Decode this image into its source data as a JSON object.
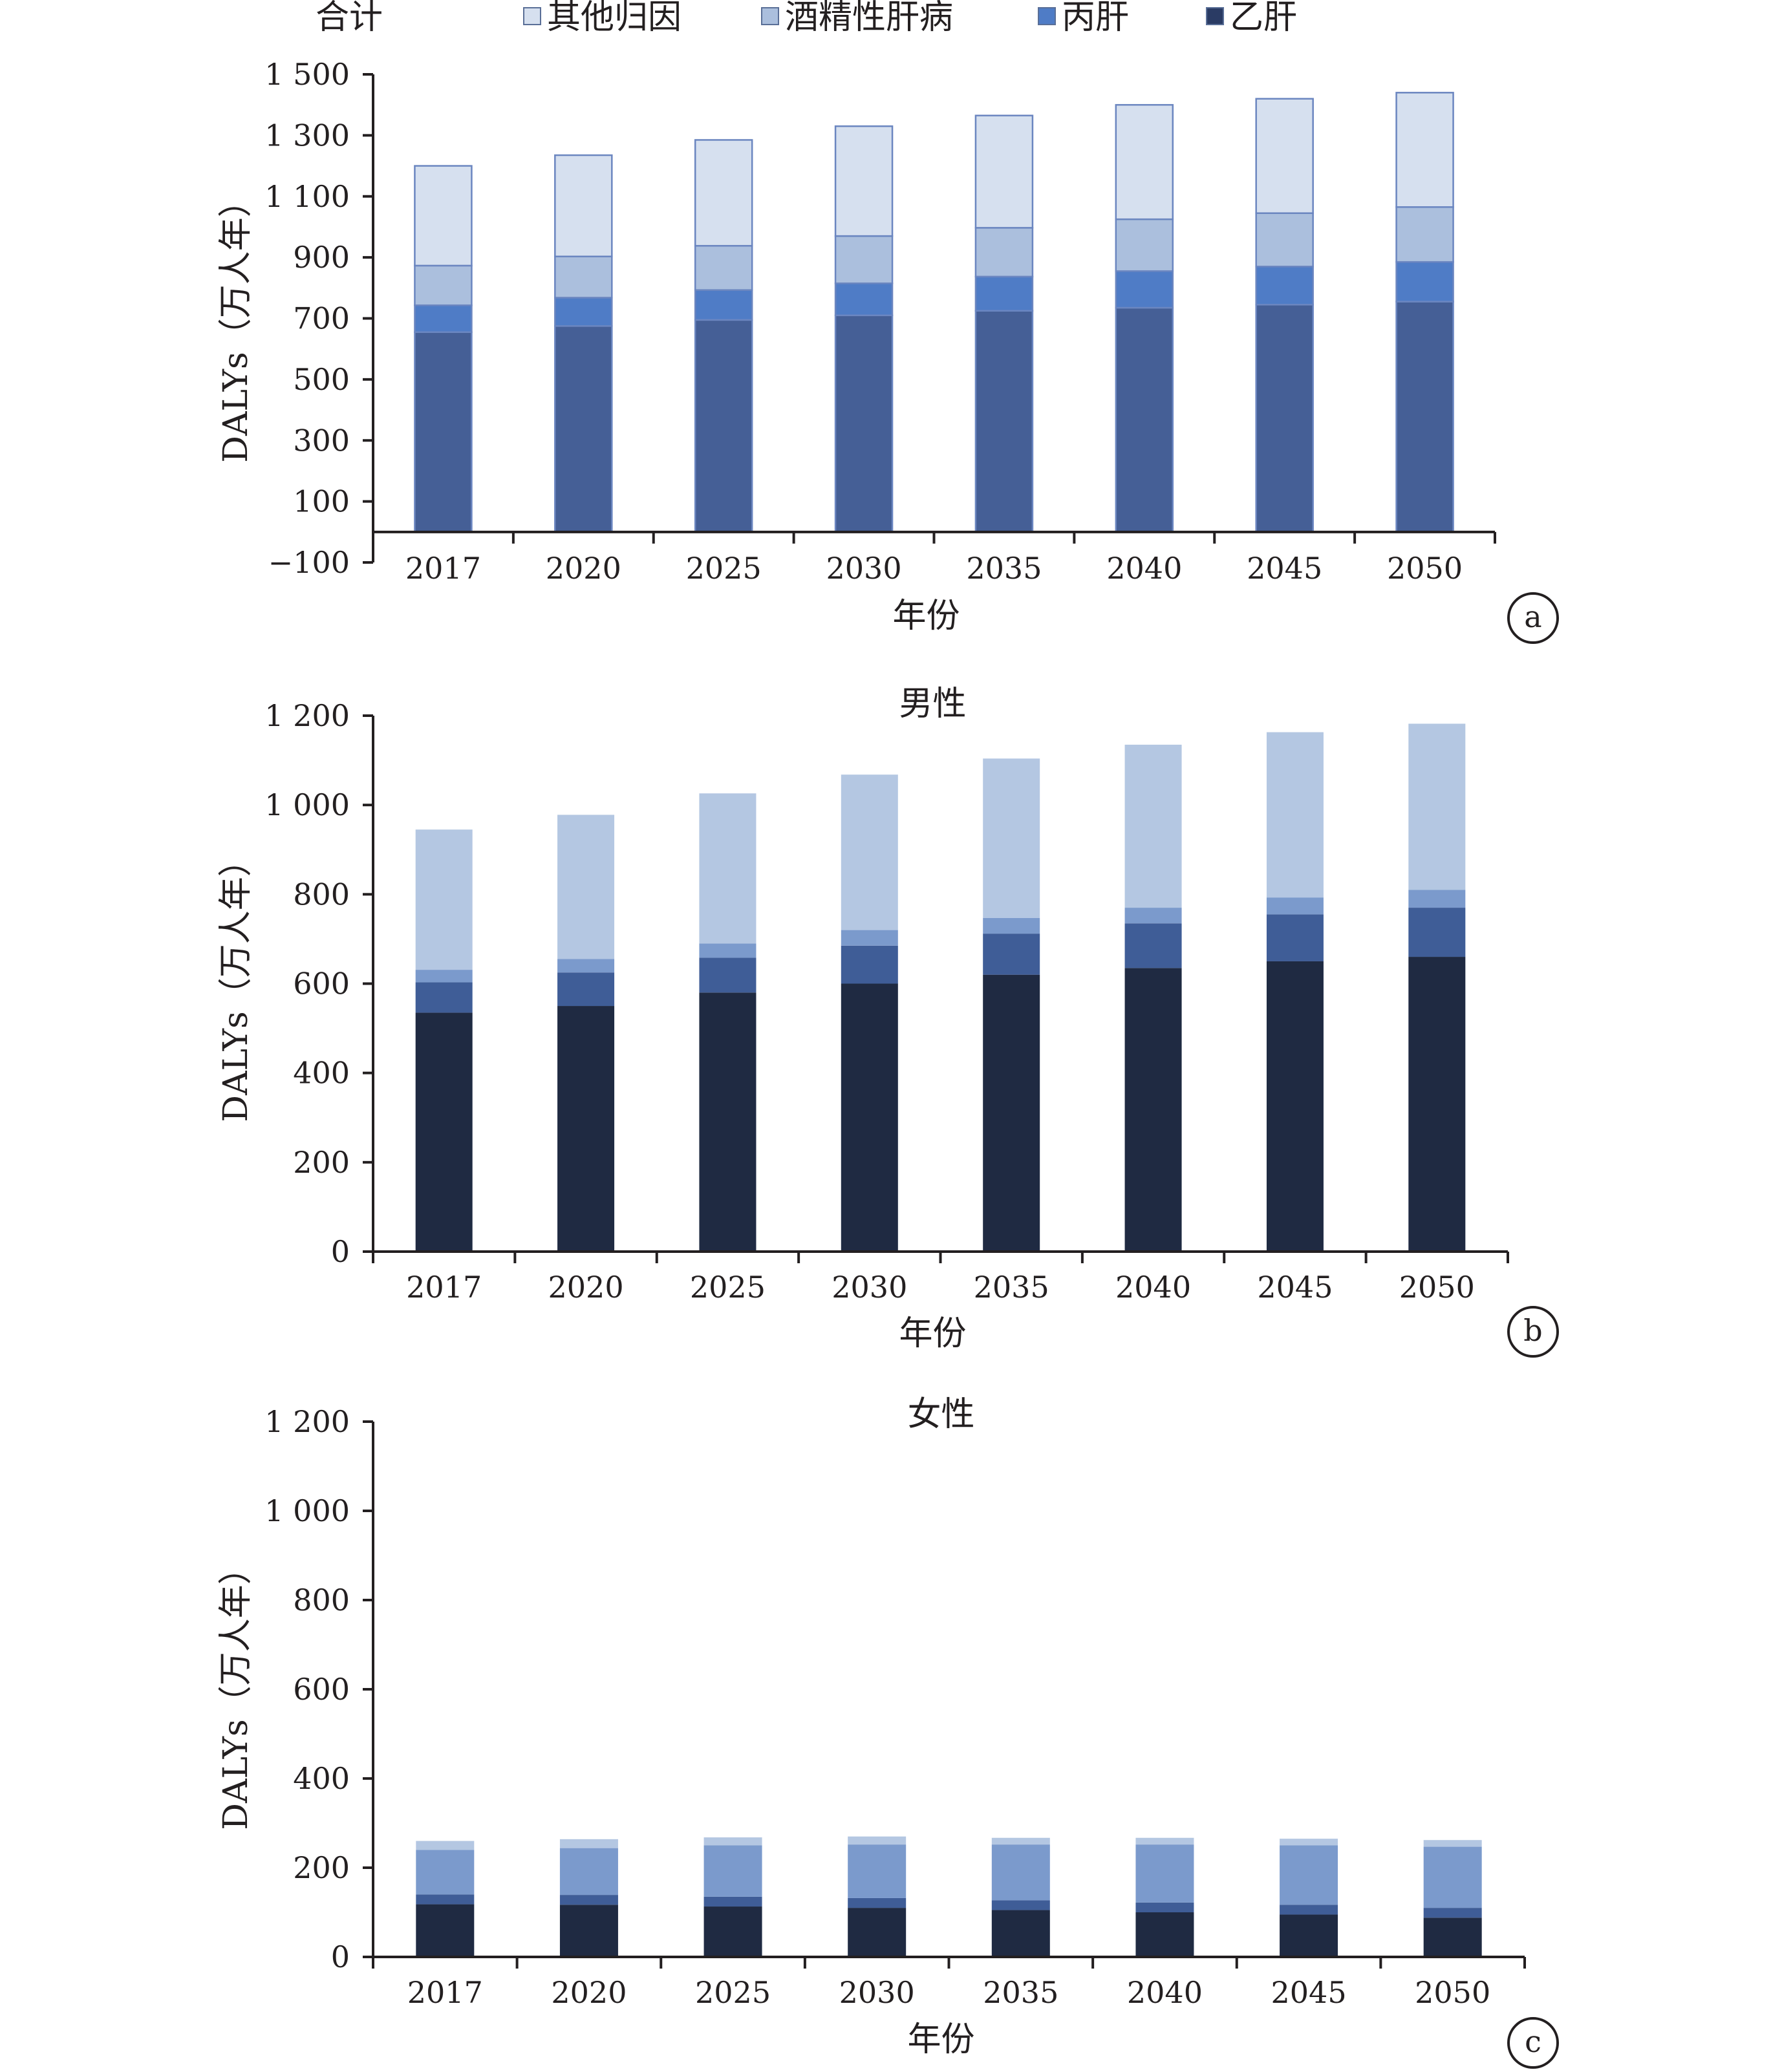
{
  "legend": {
    "title": "合计",
    "items": [
      {
        "label": "其他归因",
        "color": "#d6e0ef"
      },
      {
        "label": "酒精性肝病",
        "color": "#abbfdd"
      },
      {
        "label": "丙肝",
        "color": "#4f7cc6"
      },
      {
        "label": "乙肝",
        "color": "#2a3b64"
      }
    ]
  },
  "chart_data": [
    {
      "type": "bar",
      "stacked": true,
      "panel": "a",
      "title": "",
      "xlabel": "年份",
      "ylabel": "DALYs（万人年）",
      "ylim": [
        -100,
        1500
      ],
      "yticks": [
        -100,
        100,
        300,
        500,
        700,
        900,
        1100,
        1300,
        1500
      ],
      "ytick_labels": [
        "−100",
        "100",
        "300",
        "500",
        "700",
        "900",
        "1 100",
        "1 300",
        "1 500"
      ],
      "categories": [
        "2017",
        "2020",
        "2025",
        "2030",
        "2035",
        "2040",
        "2045",
        "2050"
      ],
      "series": [
        {
          "name": "乙肝",
          "color": "#455f96",
          "values": [
            655,
            675,
            695,
            710,
            725,
            735,
            745,
            755
          ]
        },
        {
          "name": "丙肝",
          "color": "#4f7cc6",
          "values": [
            88,
            93,
            98,
            105,
            112,
            120,
            125,
            130
          ]
        },
        {
          "name": "酒精性肝病",
          "color": "#abbfdd",
          "values": [
            130,
            135,
            145,
            155,
            160,
            170,
            175,
            180
          ]
        },
        {
          "name": "其他归因",
          "color": "#d6e0ef",
          "values": [
            327,
            332,
            347,
            360,
            368,
            375,
            375,
            375
          ]
        }
      ]
    },
    {
      "type": "bar",
      "stacked": true,
      "panel": "b",
      "title": "男性",
      "xlabel": "年份",
      "ylabel": "DALYs（万人年）",
      "ylim": [
        0,
        1200
      ],
      "yticks": [
        0,
        200,
        400,
        600,
        800,
        1000,
        1200
      ],
      "ytick_labels": [
        "0",
        "200",
        "400",
        "600",
        "800",
        "1 000",
        "1 200"
      ],
      "categories": [
        "2017",
        "2020",
        "2025",
        "2030",
        "2035",
        "2040",
        "2045",
        "2050"
      ],
      "series": [
        {
          "name": "乙肝",
          "color": "#1f2a42",
          "values": [
            535,
            550,
            580,
            600,
            620,
            635,
            650,
            660
          ]
        },
        {
          "name": "丙肝",
          "color": "#3f5d97",
          "values": [
            68,
            75,
            78,
            85,
            92,
            100,
            105,
            110
          ]
        },
        {
          "name": "酒精性肝病",
          "color": "#7b9acc",
          "values": [
            28,
            30,
            32,
            35,
            35,
            35,
            38,
            40
          ]
        },
        {
          "name": "其他归因",
          "color": "#b4c7e2",
          "values": [
            314,
            323,
            336,
            348,
            357,
            365,
            370,
            372
          ]
        }
      ]
    },
    {
      "type": "bar",
      "stacked": true,
      "panel": "c",
      "title": "女性",
      "xlabel": "年份",
      "ylabel": "DALYs（万人年）",
      "ylim": [
        0,
        1200
      ],
      "yticks": [
        0,
        200,
        400,
        600,
        800,
        1000,
        1200
      ],
      "ytick_labels": [
        "0",
        "200",
        "400",
        "600",
        "800",
        "1 000",
        "1 200"
      ],
      "categories": [
        "2017",
        "2020",
        "2025",
        "2030",
        "2035",
        "2040",
        "2045",
        "2050"
      ],
      "series": [
        {
          "name": "乙肝",
          "color": "#1f2a42",
          "values": [
            118,
            117,
            113,
            110,
            105,
            100,
            95,
            88
          ]
        },
        {
          "name": "丙肝",
          "color": "#3f5d97",
          "values": [
            22,
            22,
            22,
            22,
            22,
            22,
            22,
            22
          ]
        },
        {
          "name": "酒精性肝病",
          "color": "#7b9acc",
          "values": [
            100,
            105,
            115,
            120,
            125,
            130,
            133,
            137
          ]
        },
        {
          "name": "其他归因",
          "color": "#b4c7e2",
          "values": [
            20,
            20,
            18,
            18,
            15,
            15,
            15,
            15
          ]
        }
      ]
    }
  ]
}
